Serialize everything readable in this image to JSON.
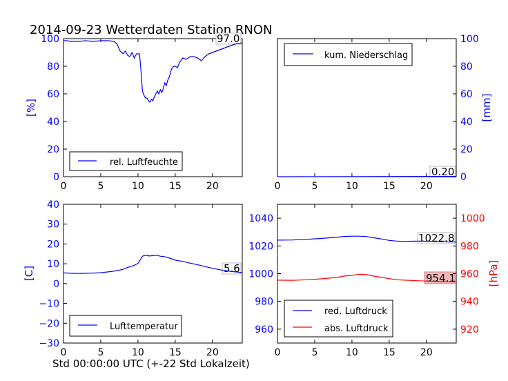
{
  "title": "2014-09-23 Wetterdaten Station RNON",
  "x_footer": "Std 00:00:00 UTC (+-22 Std Lokalzeit)",
  "colors": {
    "blue": "#0000ff",
    "red": "#ff0000",
    "black": "#000000"
  },
  "chart_data": [
    {
      "type": "line",
      "panel": "top-left",
      "xlim": [
        0,
        24
      ],
      "ylim": [
        0,
        100
      ],
      "x_ticks": [
        "0",
        "5",
        "10",
        "15",
        "20"
      ],
      "y_ticks": [
        "0",
        "20",
        "40",
        "60",
        "80",
        "100"
      ],
      "ylabel": "[%]",
      "legend": "rel. Luftfeuchte",
      "legend_loc": "lower-left",
      "last_value_label": "97.0",
      "series": [
        {
          "name": "rel. Luftfeuchte",
          "color": "#0000ff",
          "x": [
            0,
            0.5,
            1,
            2,
            3,
            4,
            5,
            6,
            6.8,
            7.2,
            7.6,
            8.0,
            8.3,
            8.6,
            8.9,
            9.2,
            9.5,
            9.8,
            10.0,
            10.2,
            10.4,
            10.6,
            10.8,
            11.0,
            11.2,
            11.4,
            11.6,
            11.8,
            12.0,
            12.2,
            12.4,
            12.6,
            12.8,
            13.0,
            13.2,
            13.4,
            13.6,
            13.8,
            14.0,
            14.2,
            14.5,
            14.8,
            15.0,
            15.3,
            15.6,
            16.0,
            16.5,
            17.0,
            17.5,
            18.0,
            18.5,
            19.0,
            19.5,
            20.0,
            20.5,
            21.0,
            21.5,
            22.0,
            22.5,
            23.0,
            23.5,
            24.0
          ],
          "y": [
            98.5,
            98.5,
            98,
            98,
            98.5,
            98,
            98.5,
            98.5,
            98,
            96,
            91,
            89,
            91,
            88,
            87,
            90,
            86,
            89,
            89,
            89,
            77,
            62,
            59,
            57,
            57,
            55,
            54,
            56,
            55,
            58,
            60,
            62,
            60,
            63,
            61,
            64,
            68,
            66,
            70,
            72,
            78,
            80,
            80,
            79,
            83,
            86,
            85,
            87,
            87,
            86,
            84,
            87,
            89,
            90,
            91,
            92,
            93,
            94,
            95,
            96,
            96.5,
            97
          ]
        }
      ]
    },
    {
      "type": "line",
      "panel": "top-right",
      "xlim": [
        0,
        24
      ],
      "ylim": [
        0,
        100
      ],
      "x_ticks": [
        "0",
        "5",
        "10",
        "15",
        "20"
      ],
      "y_ticks": [
        "0",
        "20",
        "40",
        "60",
        "80",
        "100"
      ],
      "ylabel": "[mm]",
      "legend": "kum. Niederschlag",
      "legend_loc": "upper-left",
      "last_value_label": "0.20",
      "series": [
        {
          "name": "kum. Niederschlag",
          "color": "#0000ff",
          "x": [
            0,
            24
          ],
          "y": [
            0,
            0.2
          ]
        }
      ]
    },
    {
      "type": "line",
      "panel": "bottom-left",
      "xlim": [
        0,
        24
      ],
      "ylim": [
        -30,
        40
      ],
      "x_ticks": [
        "0",
        "5",
        "10",
        "15",
        "20"
      ],
      "y_ticks": [
        "−30",
        "−20",
        "−10",
        "0",
        "10",
        "20",
        "30",
        "40"
      ],
      "ylabel": "[C]",
      "legend": "Lufttemperatur",
      "legend_loc": "lower-left",
      "last_value_label": "5.6",
      "series": [
        {
          "name": "Lufttemperatur",
          "color": "#0000ff",
          "x": [
            0,
            1,
            2,
            3,
            4,
            5,
            6,
            7,
            8,
            8.5,
            9,
            9.5,
            10,
            10.3,
            10.6,
            11,
            11.5,
            12,
            12.5,
            13,
            13.5,
            14,
            14.5,
            15,
            16,
            17,
            18,
            19,
            20,
            21,
            22,
            23,
            24
          ],
          "y": [
            5.4,
            5.2,
            5.1,
            5.2,
            5.3,
            5.5,
            5.9,
            6.4,
            7.2,
            8.0,
            8.6,
            9.2,
            10.2,
            12.0,
            13.8,
            14.3,
            13.9,
            14.1,
            14.3,
            13.8,
            13.6,
            13.2,
            12.5,
            11.8,
            11.2,
            10.3,
            9.5,
            8.6,
            7.7,
            7.0,
            6.4,
            5.9,
            5.6
          ]
        }
      ]
    },
    {
      "type": "line",
      "panel": "bottom-right",
      "xlim": [
        0,
        24
      ],
      "ylim": [
        950,
        1050
      ],
      "ylim_right": [
        910,
        1010
      ],
      "x_ticks": [
        "0",
        "5",
        "10",
        "15",
        "20"
      ],
      "y_ticks": [
        "960",
        "980",
        "1000",
        "1020",
        "1040"
      ],
      "y_ticks_right": [
        "920",
        "940",
        "960",
        "980",
        "1000"
      ],
      "ylabel_right": "[hPa]",
      "legend_loc": "lower-left",
      "series": [
        {
          "name": "red. Luftdruck",
          "color": "#0000ff",
          "axis": "left",
          "last_value_label": "1022.8",
          "x": [
            0,
            2,
            4,
            6,
            8,
            9,
            10,
            11,
            12,
            13,
            14,
            15,
            16,
            17,
            18,
            19,
            20,
            21,
            22,
            23,
            24
          ],
          "y": [
            1024.2,
            1024.3,
            1024.8,
            1025.4,
            1026.3,
            1026.8,
            1027.0,
            1027.0,
            1026.7,
            1025.8,
            1025.0,
            1024.0,
            1023.5,
            1023.3,
            1023.4,
            1023.5,
            1023.4,
            1023.2,
            1023.0,
            1022.9,
            1022.8
          ]
        },
        {
          "name": "abs. Luftdruck",
          "color": "#ff0000",
          "axis": "right",
          "last_value_label": "954.1",
          "x": [
            0,
            2,
            4,
            6,
            8,
            9,
            10,
            11,
            12,
            13,
            14,
            15,
            16,
            17,
            18,
            19,
            20,
            21,
            22,
            23,
            24
          ],
          "y": [
            955.3,
            955.2,
            955.6,
            956.3,
            957.3,
            958.3,
            958.8,
            959.6,
            959.3,
            958.2,
            957.3,
            956.4,
            955.6,
            955.3,
            955.1,
            954.9,
            954.7,
            954.5,
            954.3,
            954.2,
            954.1
          ]
        }
      ]
    }
  ]
}
